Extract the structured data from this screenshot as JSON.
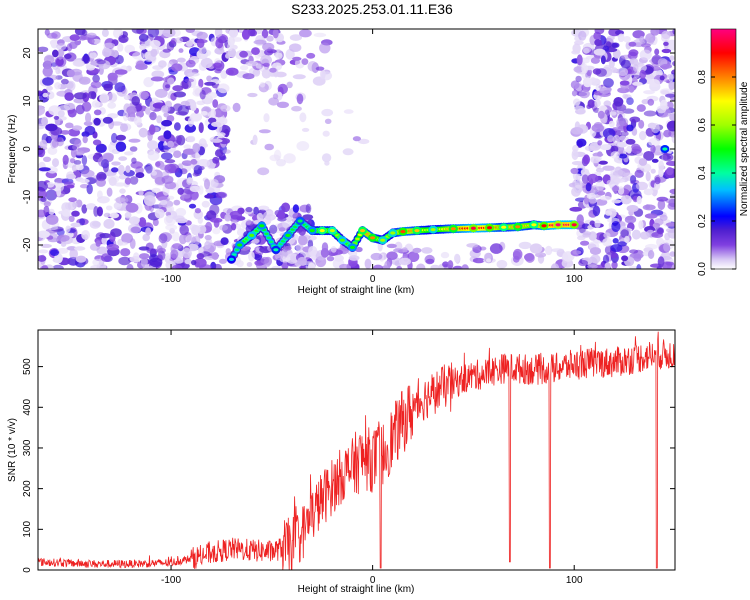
{
  "title": "S233.2025.253.01.11.E36",
  "chart_data": [
    {
      "type": "heatmap",
      "xlabel": "Height of straight line (km)",
      "ylabel": "Frequency (Hz)",
      "xlim": [
        -166,
        150
      ],
      "ylim": [
        -25,
        25
      ],
      "xticks": [
        -100,
        0,
        100
      ],
      "yticks": [
        -20,
        -10,
        0,
        10,
        20
      ],
      "colorbar": {
        "label": "Normalized spectral amplitude",
        "range": [
          0,
          1
        ],
        "ticks": [
          0.0,
          0.2,
          0.4,
          0.6,
          0.8
        ],
        "colormap": [
          "#ffffff",
          "#d8c8f4",
          "#8040e0",
          "#5020d0",
          "#0000ff",
          "#00c0ff",
          "#00ffa0",
          "#00ff00",
          "#a0ff00",
          "#ffff00",
          "#ff8000",
          "#ff0000",
          "#ff0080"
        ]
      },
      "ridge": [
        {
          "x": -70,
          "y": -23,
          "a": 0.35
        },
        {
          "x": -66,
          "y": -20,
          "a": 0.5
        },
        {
          "x": -60,
          "y": -18,
          "a": 0.55
        },
        {
          "x": -55,
          "y": -16,
          "a": 0.5
        },
        {
          "x": -48,
          "y": -21,
          "a": 0.4
        },
        {
          "x": -42,
          "y": -18,
          "a": 0.5
        },
        {
          "x": -36,
          "y": -15,
          "a": 0.45
        },
        {
          "x": -30,
          "y": -17,
          "a": 0.5
        },
        {
          "x": -25,
          "y": -17,
          "a": 0.7
        },
        {
          "x": -20,
          "y": -17,
          "a": 0.65
        },
        {
          "x": -15,
          "y": -19,
          "a": 0.55
        },
        {
          "x": -10,
          "y": -20.5,
          "a": 0.5
        },
        {
          "x": -5,
          "y": -17,
          "a": 0.75
        },
        {
          "x": 0,
          "y": -18.5,
          "a": 0.8
        },
        {
          "x": 5,
          "y": -19,
          "a": 0.6
        },
        {
          "x": 10,
          "y": -17.5,
          "a": 0.6
        },
        {
          "x": 15,
          "y": -17.2,
          "a": 0.85
        },
        {
          "x": 22,
          "y": -17,
          "a": 0.75
        },
        {
          "x": 30,
          "y": -16.8,
          "a": 0.6
        },
        {
          "x": 40,
          "y": -16.6,
          "a": 0.8
        },
        {
          "x": 50,
          "y": -16.5,
          "a": 0.95
        },
        {
          "x": 58,
          "y": -16.4,
          "a": 0.9
        },
        {
          "x": 65,
          "y": -16.3,
          "a": 0.7
        },
        {
          "x": 72,
          "y": -16.2,
          "a": 0.8
        },
        {
          "x": 80,
          "y": -15.8,
          "a": 0.7
        },
        {
          "x": 85,
          "y": -16.0,
          "a": 0.9
        },
        {
          "x": 92,
          "y": -15.8,
          "a": 1.0
        },
        {
          "x": 100,
          "y": -15.8,
          "a": 0.95
        },
        {
          "x": 145,
          "y": 0,
          "a": 0.4
        }
      ]
    },
    {
      "type": "line",
      "xlabel": "Height of straight line (km)",
      "ylabel": "SNR (10 * v/v)",
      "xlim": [
        -166,
        150
      ],
      "ylim": [
        0,
        590
      ],
      "xticks": [
        -100,
        0,
        100
      ],
      "yticks": [
        0,
        100,
        200,
        300,
        400,
        500
      ],
      "series": [
        {
          "color": "#ee2222",
          "x": [
            -166,
            -140,
            -120,
            -100,
            -90,
            -80,
            -70,
            -60,
            -50,
            -40,
            -35,
            -30,
            -25,
            -20,
            -15,
            -10,
            -5,
            0,
            5,
            10,
            15,
            20,
            25,
            30,
            35,
            40,
            45,
            50,
            55,
            60,
            65,
            70,
            80,
            90,
            100,
            110,
            120,
            130,
            140,
            150
          ],
          "values": [
            20,
            15,
            15,
            18,
            28,
            42,
            52,
            48,
            45,
            62,
            90,
            135,
            175,
            205,
            235,
            255,
            275,
            270,
            285,
            325,
            365,
            395,
            420,
            435,
            450,
            458,
            470,
            478,
            482,
            490,
            496,
            496,
            492,
            495,
            505,
            510,
            510,
            520,
            530,
            530
          ]
        }
      ],
      "dips": [
        {
          "x": 4,
          "y": 5
        },
        {
          "x": 68,
          "y": 20
        },
        {
          "x": 88,
          "y": 5
        },
        {
          "x": 141,
          "y": 5
        }
      ]
    }
  ]
}
